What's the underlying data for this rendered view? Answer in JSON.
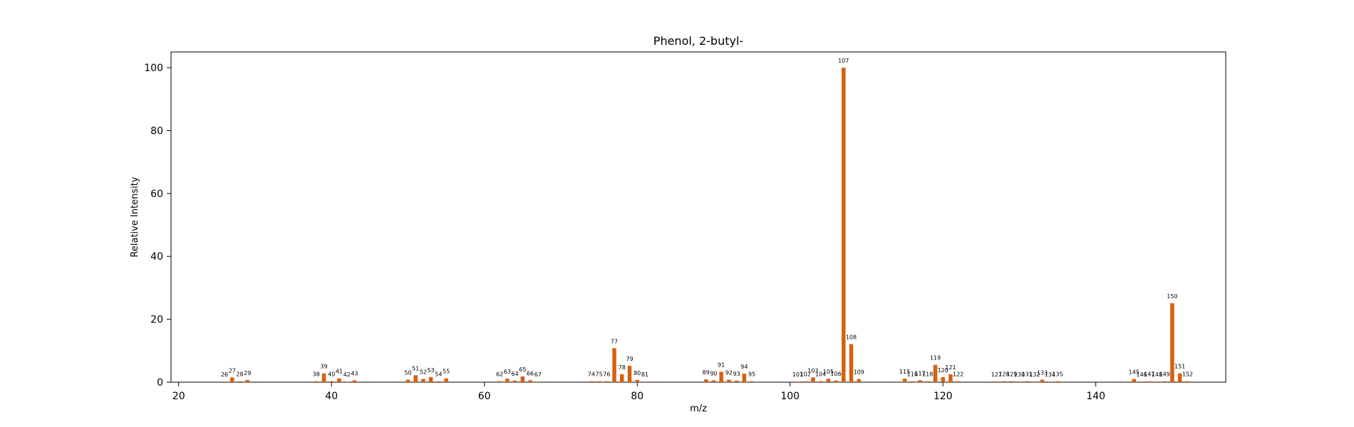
{
  "chart_data": {
    "type": "bar",
    "title": "Phenol, 2-butyl-",
    "xlabel": "m/z",
    "ylabel": "Relative Intensity",
    "xlim": [
      19,
      157
    ],
    "ylim": [
      0,
      105
    ],
    "xticks": [
      20,
      40,
      60,
      80,
      100,
      120,
      140
    ],
    "yticks": [
      0,
      20,
      40,
      60,
      80,
      100
    ],
    "bar_color": "#d95f0e",
    "grid": false,
    "legend": null,
    "points": [
      {
        "x": 26,
        "y": 0.2
      },
      {
        "x": 27,
        "y": 1.5
      },
      {
        "x": 28,
        "y": 0.3
      },
      {
        "x": 29,
        "y": 0.7
      },
      {
        "x": 38,
        "y": 0.3
      },
      {
        "x": 39,
        "y": 2.8
      },
      {
        "x": 40,
        "y": 0.3
      },
      {
        "x": 41,
        "y": 1.2
      },
      {
        "x": 42,
        "y": 0.2
      },
      {
        "x": 43,
        "y": 0.6
      },
      {
        "x": 50,
        "y": 0.8
      },
      {
        "x": 51,
        "y": 2.2
      },
      {
        "x": 52,
        "y": 1.0
      },
      {
        "x": 53,
        "y": 1.6
      },
      {
        "x": 54,
        "y": 0.3
      },
      {
        "x": 55,
        "y": 1.2
      },
      {
        "x": 62,
        "y": 0.3
      },
      {
        "x": 63,
        "y": 1.1
      },
      {
        "x": 64,
        "y": 0.5
      },
      {
        "x": 65,
        "y": 1.8
      },
      {
        "x": 66,
        "y": 0.6
      },
      {
        "x": 67,
        "y": 0.2
      },
      {
        "x": 74,
        "y": 0.3
      },
      {
        "x": 75,
        "y": 0.3
      },
      {
        "x": 76,
        "y": 0.3
      },
      {
        "x": 77,
        "y": 10.8
      },
      {
        "x": 78,
        "y": 2.5
      },
      {
        "x": 79,
        "y": 5.2
      },
      {
        "x": 80,
        "y": 0.7
      },
      {
        "x": 81,
        "y": 0.2
      },
      {
        "x": 89,
        "y": 0.9
      },
      {
        "x": 90,
        "y": 0.6
      },
      {
        "x": 91,
        "y": 3.3
      },
      {
        "x": 92,
        "y": 0.8
      },
      {
        "x": 93,
        "y": 0.5
      },
      {
        "x": 94,
        "y": 2.7
      },
      {
        "x": 95,
        "y": 0.3
      },
      {
        "x": 101,
        "y": 0.2
      },
      {
        "x": 102,
        "y": 0.3
      },
      {
        "x": 103,
        "y": 1.5
      },
      {
        "x": 104,
        "y": 0.3
      },
      {
        "x": 105,
        "y": 1.1
      },
      {
        "x": 106,
        "y": 0.5
      },
      {
        "x": 107,
        "y": 100.0
      },
      {
        "x": 108,
        "y": 12.1
      },
      {
        "x": 109,
        "y": 1.0
      },
      {
        "x": 115,
        "y": 1.1
      },
      {
        "x": 116,
        "y": 0.3
      },
      {
        "x": 117,
        "y": 0.6
      },
      {
        "x": 118,
        "y": 0.3
      },
      {
        "x": 119,
        "y": 5.5
      },
      {
        "x": 120,
        "y": 1.6
      },
      {
        "x": 121,
        "y": 2.5
      },
      {
        "x": 122,
        "y": 0.3
      },
      {
        "x": 127,
        "y": 0.2
      },
      {
        "x": 128,
        "y": 0.3
      },
      {
        "x": 129,
        "y": 0.3
      },
      {
        "x": 130,
        "y": 0.2
      },
      {
        "x": 131,
        "y": 0.3
      },
      {
        "x": 132,
        "y": 0.2
      },
      {
        "x": 133,
        "y": 0.8
      },
      {
        "x": 134,
        "y": 0.2
      },
      {
        "x": 135,
        "y": 0.3
      },
      {
        "x": 145,
        "y": 1.0
      },
      {
        "x": 146,
        "y": 0.2
      },
      {
        "x": 147,
        "y": 0.3
      },
      {
        "x": 148,
        "y": 0.2
      },
      {
        "x": 149,
        "y": 0.3
      },
      {
        "x": 150,
        "y": 25.1
      },
      {
        "x": 151,
        "y": 2.8
      },
      {
        "x": 152,
        "y": 0.3
      }
    ]
  }
}
